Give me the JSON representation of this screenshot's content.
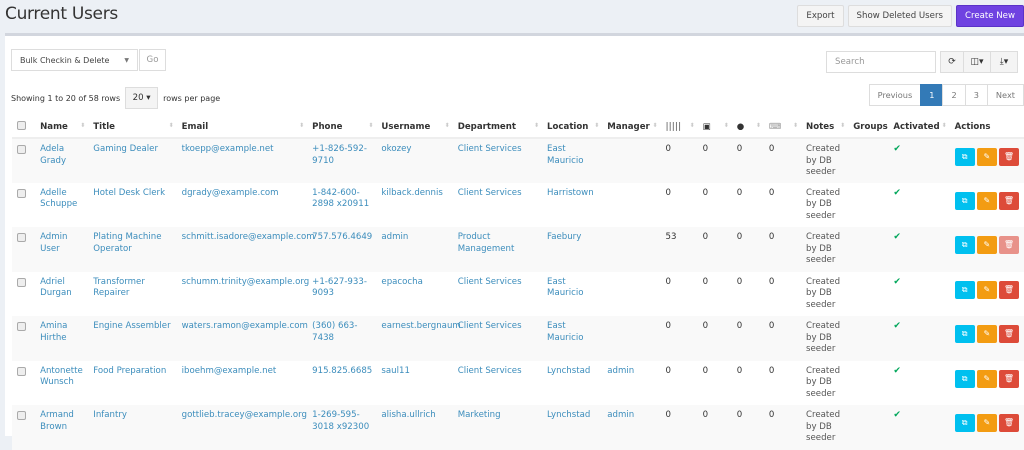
{
  "header": {
    "title": "Current Users",
    "export": "Export",
    "show_deleted": "Show Deleted Users",
    "create_new": "Create New"
  },
  "toolbar": {
    "bulk_action": "Bulk Checkin & Delete",
    "go": "Go",
    "search_placeholder": "Search",
    "refresh_icon": "refresh-icon",
    "columns_icon": "columns-icon",
    "export_icon": "download-icon"
  },
  "pagination": {
    "showing": "Showing 1 to 20 of 58 rows",
    "page_size": "20",
    "rows_per_page": "rows per page",
    "previous": "Previous",
    "pages": [
      "1",
      "2",
      "3"
    ],
    "current": "1",
    "next": "Next"
  },
  "colors": {
    "accent": "#6f42e1",
    "link": "#3c8dbc",
    "active_page": "#337ab7",
    "clone": "#00c0ef",
    "edit": "#f39c12",
    "delete": "#dd4b39",
    "check": "#00a65a"
  },
  "columns": [
    "Name",
    "Title",
    "Email",
    "Phone",
    "Username",
    "Department",
    "Location",
    "Manager",
    "barcode-icon",
    "save-icon",
    "tint-icon",
    "keyboard-icon",
    "Notes",
    "Groups",
    "Activated",
    "Actions"
  ],
  "rows": [
    {
      "name": "Adela Grady",
      "title": "Gaming Dealer",
      "email": "tkoepp@example.net",
      "phone": "+1-826-592-9710",
      "username": "okozey",
      "department": "Client Services",
      "location": "East Mauricio",
      "manager": "",
      "c1": "0",
      "c2": "0",
      "c3": "0",
      "c4": "0",
      "notes": "Created by DB seeder",
      "activated": true,
      "can_delete": true
    },
    {
      "name": "Adelle Schuppe",
      "title": "Hotel Desk Clerk",
      "email": "dgrady@example.com",
      "phone": "1-842-600-2898 x20911",
      "username": "kilback.dennis",
      "department": "Client Services",
      "location": "Harristown",
      "manager": "",
      "c1": "0",
      "c2": "0",
      "c3": "0",
      "c4": "0",
      "notes": "Created by DB seeder",
      "activated": true,
      "can_delete": true
    },
    {
      "name": "Admin User",
      "title": "Plating Machine Operator",
      "email": "schmitt.isadore@example.com",
      "phone": "757.576.4649",
      "username": "admin",
      "department": "Product Management",
      "location": "Faebury",
      "manager": "",
      "c1": "53",
      "c2": "0",
      "c3": "0",
      "c4": "0",
      "notes": "Created by DB seeder",
      "activated": true,
      "can_delete": false
    },
    {
      "name": "Adriel Durgan",
      "title": "Transformer Repairer",
      "email": "schumm.trinity@example.org",
      "phone": "+1-627-933-9093",
      "username": "epacocha",
      "department": "Client Services",
      "location": "East Mauricio",
      "manager": "",
      "c1": "0",
      "c2": "0",
      "c3": "0",
      "c4": "0",
      "notes": "Created by DB seeder",
      "activated": true,
      "can_delete": true
    },
    {
      "name": "Amina Hirthe",
      "title": "Engine Assembler",
      "email": "waters.ramon@example.com",
      "phone": "(360) 663-7438",
      "username": "earnest.bergnaum",
      "department": "Client Services",
      "location": "East Mauricio",
      "manager": "",
      "c1": "0",
      "c2": "0",
      "c3": "0",
      "c4": "0",
      "notes": "Created by DB seeder",
      "activated": true,
      "can_delete": true
    },
    {
      "name": "Antonette Wunsch",
      "title": "Food Preparation",
      "email": "iboehm@example.net",
      "phone": "915.825.6685",
      "username": "saul11",
      "department": "Client Services",
      "location": "Lynchstad",
      "manager": "admin",
      "c1": "0",
      "c2": "0",
      "c3": "0",
      "c4": "0",
      "notes": "Created by DB seeder",
      "activated": true,
      "can_delete": true
    },
    {
      "name": "Armand Brown",
      "title": "Infantry",
      "email": "gottlieb.tracey@example.org",
      "phone": "1-269-595-3018 x92300",
      "username": "alisha.ullrich",
      "department": "Marketing",
      "location": "Lynchstad",
      "manager": "admin",
      "c1": "0",
      "c2": "0",
      "c3": "0",
      "c4": "0",
      "notes": "Created by DB seeder",
      "activated": true,
      "can_delete": true
    }
  ]
}
